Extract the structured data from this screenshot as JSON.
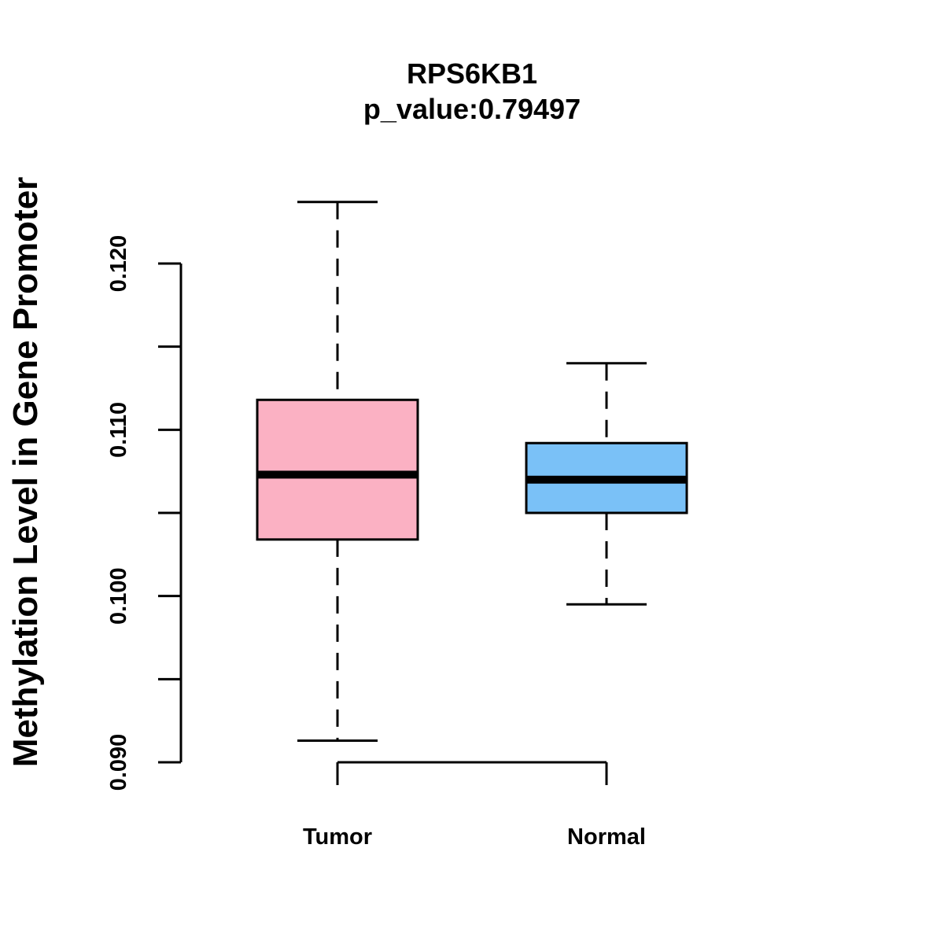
{
  "chart_data": {
    "type": "boxplot",
    "title": "RPS6KB1",
    "subtitle": "p_value:0.79497",
    "xlabel": "",
    "ylabel": "Methylation Level in Gene Promoter",
    "ylim": [
      0.09,
      0.12
    ],
    "y_ticks": [
      0.09,
      0.095,
      0.1,
      0.105,
      0.11,
      0.115,
      0.12
    ],
    "y_tick_labels": [
      "0.090",
      "",
      "0.100",
      "",
      "0.110",
      "",
      "0.120"
    ],
    "categories": [
      "Tumor",
      "Normal"
    ],
    "groups": [
      {
        "name": "Tumor",
        "whisker_low": 0.0913,
        "q1": 0.1034,
        "median": 0.1073,
        "q3": 0.1118,
        "whisker_high": 0.1237,
        "color": "#FBB1C3"
      },
      {
        "name": "Normal",
        "whisker_low": 0.0995,
        "q1": 0.105,
        "median": 0.107,
        "q3": 0.1092,
        "whisker_high": 0.114,
        "color": "#7AC1F7"
      }
    ]
  }
}
